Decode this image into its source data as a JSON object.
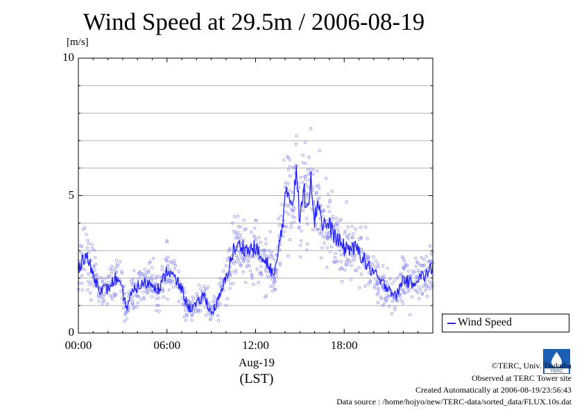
{
  "title": "Wind Speed at 29.5m / 2006-08-19",
  "chart_data": {
    "type": "line",
    "title": "Wind Speed at 29.5m / 2006-08-19",
    "ylabel": "[m/s]",
    "xlabel": "(LST)",
    "x_date_label": "Aug-19",
    "ylim": [
      0,
      10
    ],
    "yticks": [
      "0",
      "5",
      "10"
    ],
    "xlim_hours": [
      0,
      24
    ],
    "xticks": [
      "00:00",
      "06:00",
      "12:00",
      "18:00"
    ],
    "grid": true,
    "legend": "right",
    "series": [
      {
        "name": "Wind Speed",
        "color": "#2020ff",
        "x": [
          0.0,
          0.5,
          1.0,
          1.5,
          2.0,
          2.5,
          3.0,
          3.25,
          3.5,
          4.0,
          4.5,
          5.0,
          5.5,
          6.0,
          6.5,
          7.0,
          7.25,
          7.5,
          8.0,
          8.5,
          9.0,
          9.5,
          9.75,
          10.0,
          10.5,
          11.0,
          11.5,
          12.0,
          12.5,
          13.0,
          13.25,
          13.5,
          14.0,
          14.25,
          14.5,
          14.75,
          15.0,
          15.25,
          15.5,
          15.75,
          16.0,
          16.25,
          16.5,
          17.0,
          17.5,
          18.0,
          18.5,
          19.0,
          19.5,
          20.0,
          20.5,
          21.0,
          21.5,
          22.0,
          22.5,
          23.0,
          23.5,
          24.0
        ],
        "y": [
          2.4,
          2.9,
          2.1,
          1.6,
          1.6,
          2.0,
          1.5,
          0.9,
          1.3,
          1.7,
          1.8,
          1.8,
          1.6,
          2.3,
          2.0,
          1.6,
          1.2,
          0.9,
          1.0,
          1.4,
          0.7,
          1.2,
          1.6,
          2.0,
          3.0,
          3.2,
          3.0,
          3.1,
          2.6,
          2.4,
          2.0,
          2.8,
          4.8,
          5.1,
          4.7,
          6.1,
          4.0,
          5.2,
          4.6,
          5.8,
          4.1,
          4.9,
          4.0,
          3.9,
          3.4,
          3.1,
          3.1,
          3.0,
          2.5,
          2.2,
          1.8,
          1.7,
          1.3,
          2.0,
          1.8,
          2.0,
          2.1,
          2.4
        ]
      }
    ]
  },
  "legend": {
    "label": "Wind Speed"
  },
  "credits": {
    "copyright": "©TERC, Univ. Tsukuba",
    "site": "Observed at TERC Tower site",
    "created": "Created Automatically at 2006-08-19/23:56:43",
    "source": "Data source : /home/hojyo/new/TERC-data/sorted_data/FLUX.10s.dat"
  },
  "logo_text": "TERC"
}
